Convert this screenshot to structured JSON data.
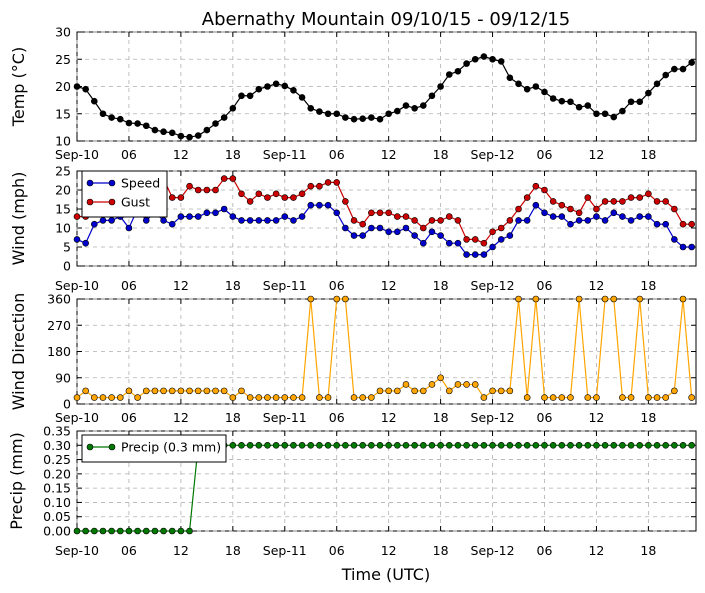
{
  "title": "Abernathy Mountain 09/10/15 - 09/12/15",
  "xlabel": "Time (UTC)",
  "x_ticks": [
    "Sep-10",
    "06",
    "12",
    "18",
    "Sep-11",
    "06",
    "12",
    "18",
    "Sep-12",
    "06",
    "12",
    "18"
  ],
  "colors": {
    "temp": "#000000",
    "speed": "#0000cc",
    "gust": "#cc0000",
    "dir": "#ffa500",
    "precip": "#007700"
  },
  "chart_data": [
    {
      "type": "line",
      "ylabel": "Temp (°C)",
      "ylim": [
        10,
        30
      ],
      "yticks": [
        "10",
        "15",
        "20",
        "25",
        "30"
      ],
      "x_unit": "hours since Sep-10 00 UTC",
      "series": [
        {
          "key": "temp",
          "values": [
            20,
            19.5,
            17.3,
            15,
            14.3,
            14,
            13.3,
            13.2,
            12.8,
            12,
            11.7,
            11.5,
            10.9,
            10.7,
            11,
            12,
            13.2,
            14.3,
            16,
            18.3,
            18.3,
            19.5,
            20,
            20.5,
            20.1,
            19.3,
            18,
            16,
            15.4,
            15,
            15,
            14.3,
            14,
            14.1,
            14.3,
            14,
            15,
            15.5,
            16.5,
            16,
            16.5,
            18.3,
            20,
            22.2,
            22.8,
            24.2,
            25,
            25.5,
            25,
            24.6,
            21.6,
            20.5,
            19.5,
            20,
            19,
            17.8,
            17.3,
            17.2,
            16.2,
            16.5,
            15,
            15,
            14.4,
            15.5,
            17.2,
            17.2,
            18.8,
            20.5,
            22.1,
            23.2,
            23.2,
            24.4
          ]
        }
      ]
    },
    {
      "type": "line",
      "ylabel": "Wind (mph)",
      "ylim": [
        0,
        25
      ],
      "yticks": [
        "0",
        "5",
        "10",
        "15",
        "20",
        "25"
      ],
      "legend": "top-left",
      "series": [
        {
          "key": "speed",
          "name": "Speed",
          "values": [
            7,
            6,
            11,
            12,
            12,
            13,
            10,
            15,
            12,
            14,
            12,
            11,
            13,
            13,
            13,
            14,
            14,
            15,
            13,
            12,
            12,
            12,
            12,
            12,
            13,
            12,
            13,
            16,
            16,
            16,
            14,
            10,
            8,
            8,
            10,
            10,
            9,
            9,
            10,
            8,
            6,
            9,
            8,
            6,
            6,
            3,
            3,
            3,
            5,
            7,
            8,
            12,
            12,
            16,
            14,
            13,
            13,
            11,
            12,
            12,
            13,
            12,
            14,
            13,
            12,
            13,
            13,
            11,
            11,
            7,
            5,
            5
          ]
        },
        {
          "key": "gust",
          "name": "Gust",
          "values": [
            13,
            13,
            18,
            18,
            19,
            21,
            21,
            22,
            22,
            22,
            23,
            18,
            18,
            21,
            20,
            20,
            20,
            23,
            23,
            19,
            17,
            19,
            18,
            19,
            18,
            18,
            19,
            21,
            21,
            22,
            22,
            17,
            12,
            11,
            14,
            14,
            14,
            13,
            13,
            12,
            10,
            12,
            12,
            13,
            12,
            7,
            7,
            6,
            9,
            10,
            12,
            15,
            18,
            21,
            20,
            17,
            16,
            15,
            14,
            18,
            15,
            17,
            17,
            17,
            18,
            18,
            19,
            17,
            17,
            15,
            11,
            11
          ]
        }
      ]
    },
    {
      "type": "line",
      "ylabel": "Wind Direction",
      "ylim": [
        0,
        360
      ],
      "yticks": [
        "0",
        "90",
        "180",
        "270",
        "360"
      ],
      "series": [
        {
          "key": "dir",
          "values": [
            22,
            45,
            22,
            22,
            22,
            22,
            45,
            22,
            45,
            45,
            45,
            45,
            45,
            45,
            45,
            45,
            45,
            45,
            22,
            45,
            22,
            22,
            22,
            22,
            22,
            22,
            22,
            360,
            22,
            22,
            360,
            360,
            22,
            22,
            22,
            45,
            45,
            45,
            67,
            45,
            45,
            67,
            90,
            45,
            67,
            67,
            67,
            22,
            45,
            45,
            45,
            360,
            22,
            360,
            22,
            22,
            22,
            22,
            360,
            22,
            22,
            360,
            360,
            22,
            22,
            360,
            22,
            22,
            22,
            45,
            360,
            22
          ]
        }
      ]
    },
    {
      "type": "line",
      "ylabel": "Precip (mm)",
      "ylim": [
        0,
        0.35
      ],
      "yticks": [
        "0.00",
        "0.05",
        "0.10",
        "0.15",
        "0.20",
        "0.25",
        "0.30",
        "0.35"
      ],
      "legend": "top-left",
      "series": [
        {
          "key": "precip",
          "name": "Precip (0.3 mm)",
          "values": [
            0,
            0,
            0,
            0,
            0,
            0,
            0,
            0,
            0,
            0,
            0,
            0,
            0,
            0,
            0.3,
            0.3,
            0.3,
            0.3,
            0.3,
            0.3,
            0.3,
            0.3,
            0.3,
            0.3,
            0.3,
            0.3,
            0.3,
            0.3,
            0.3,
            0.3,
            0.3,
            0.3,
            0.3,
            0.3,
            0.3,
            0.3,
            0.3,
            0.3,
            0.3,
            0.3,
            0.3,
            0.3,
            0.3,
            0.3,
            0.3,
            0.3,
            0.3,
            0.3,
            0.3,
            0.3,
            0.3,
            0.3,
            0.3,
            0.3,
            0.3,
            0.3,
            0.3,
            0.3,
            0.3,
            0.3,
            0.3,
            0.3,
            0.3,
            0.3,
            0.3,
            0.3,
            0.3,
            0.3,
            0.3,
            0.3,
            0.3,
            0.3
          ]
        }
      ]
    }
  ]
}
